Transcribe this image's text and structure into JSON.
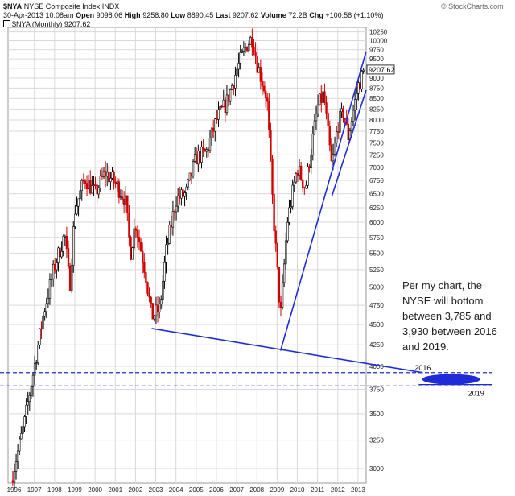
{
  "header": {
    "symbol": "$NYA",
    "name": "NYSE Composite Index",
    "exchange": "INDX",
    "date": "30-Apr-2013 10:08am",
    "open_label": "Open",
    "open": "9098.06",
    "high_label": "High",
    "high": "9258.80",
    "low_label": "Low",
    "low": "8890.45",
    "last_label": "Last",
    "last": "9207.62",
    "volume_label": "Volume",
    "volume": "72.2B",
    "chg_label": "Chg",
    "chg": "+100.58 (+1.10%)",
    "source": "© StockCharts.com",
    "legend": "$NYA (Monthly) 9207.62"
  },
  "annotation": {
    "text": "Per my chart, the NYSE will bottom between 3,785 and 3,930 between 2016 and 2019.",
    "label_2016": "2016",
    "label_2019": "2019"
  },
  "last_price_tag": "9207.62",
  "colors": {
    "up": "#000000",
    "down": "#d40000",
    "trendline": "#1f2bd8",
    "grid": "#d9d9d9",
    "last_tag": "#ffff66"
  },
  "chart_data": {
    "type": "candlestick",
    "title": "NYSE Composite Index",
    "interval": "Monthly",
    "x_ticks": [
      "1996",
      "1997",
      "1998",
      "1999",
      "2000",
      "2001",
      "2002",
      "2003",
      "2004",
      "2005",
      "2006",
      "2007",
      "2008",
      "2009",
      "2010",
      "2011",
      "2012",
      "2013"
    ],
    "y_ticks": [
      3000,
      3250,
      3500,
      3750,
      4000,
      4250,
      4500,
      4750,
      5000,
      5250,
      5500,
      5750,
      6000,
      6250,
      6500,
      6750,
      7000,
      7250,
      7500,
      7750,
      8000,
      8250,
      8500,
      8750,
      9000,
      9250,
      9500,
      9750,
      10000,
      10250
    ],
    "x_range": [
      1995.7,
      2013.4
    ],
    "y_range": [
      2880,
      10380
    ],
    "y_scale": "log",
    "grid": true,
    "close_path": [
      {
        "x": 1995.85,
        "y": 2900
      },
      {
        "x": 1996.5,
        "y": 3400
      },
      {
        "x": 1997.0,
        "y": 4000
      },
      {
        "x": 1997.5,
        "y": 4700
      },
      {
        "x": 1998.0,
        "y": 5300
      },
      {
        "x": 1998.5,
        "y": 5800
      },
      {
        "x": 1998.75,
        "y": 5000
      },
      {
        "x": 1999.0,
        "y": 6200
      },
      {
        "x": 1999.5,
        "y": 6800
      },
      {
        "x": 2000.0,
        "y": 6500
      },
      {
        "x": 2000.5,
        "y": 6900
      },
      {
        "x": 2001.0,
        "y": 6700
      },
      {
        "x": 2001.5,
        "y": 6400
      },
      {
        "x": 2001.75,
        "y": 5500
      },
      {
        "x": 2002.0,
        "y": 6000
      },
      {
        "x": 2002.5,
        "y": 5200
      },
      {
        "x": 2002.8,
        "y": 4600
      },
      {
        "x": 2003.2,
        "y": 4700
      },
      {
        "x": 2003.5,
        "y": 5500
      },
      {
        "x": 2004.0,
        "y": 6400
      },
      {
        "x": 2004.5,
        "y": 6500
      },
      {
        "x": 2005.0,
        "y": 7200
      },
      {
        "x": 2005.5,
        "y": 7300
      },
      {
        "x": 2006.0,
        "y": 8000
      },
      {
        "x": 2006.5,
        "y": 8400
      },
      {
        "x": 2007.0,
        "y": 9200
      },
      {
        "x": 2007.5,
        "y": 9900
      },
      {
        "x": 2007.8,
        "y": 10100
      },
      {
        "x": 2008.0,
        "y": 9400
      },
      {
        "x": 2008.5,
        "y": 8500
      },
      {
        "x": 2008.8,
        "y": 6200
      },
      {
        "x": 2009.17,
        "y": 4600
      },
      {
        "x": 2009.5,
        "y": 6000
      },
      {
        "x": 2010.0,
        "y": 7000
      },
      {
        "x": 2010.4,
        "y": 6600
      },
      {
        "x": 2011.0,
        "y": 8300
      },
      {
        "x": 2011.3,
        "y": 8600
      },
      {
        "x": 2011.7,
        "y": 7000
      },
      {
        "x": 2012.0,
        "y": 7900
      },
      {
        "x": 2012.3,
        "y": 8200
      },
      {
        "x": 2012.5,
        "y": 7600
      },
      {
        "x": 2012.8,
        "y": 8300
      },
      {
        "x": 2013.0,
        "y": 8800
      },
      {
        "x": 2013.33,
        "y": 9207.62
      }
    ],
    "trendlines": [
      {
        "from": {
          "x": 2002.8,
          "y": 4450
        },
        "to": {
          "x": 2016.2,
          "y": 3930
        }
      },
      {
        "from": {
          "x": 2009.17,
          "y": 4180
        },
        "to": {
          "x": 2013.4,
          "y": 9700
        }
      },
      {
        "from": {
          "x": 2011.7,
          "y": 6450
        },
        "to": {
          "x": 2013.4,
          "y": 8700
        }
      }
    ],
    "levels": [
      {
        "y": 3930,
        "style": "dashed"
      },
      {
        "y": 3785,
        "style": "dashed"
      },
      {
        "y": 3800,
        "style": "solid",
        "from_x": 2016
      }
    ]
  }
}
